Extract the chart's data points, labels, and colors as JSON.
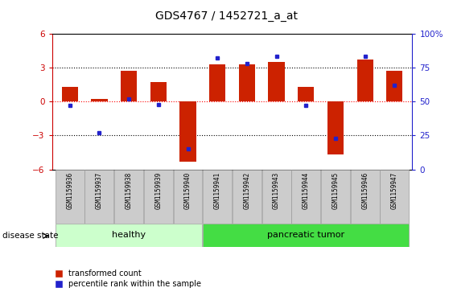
{
  "title": "GDS4767 / 1452721_a_at",
  "samples": [
    "GSM1159936",
    "GSM1159937",
    "GSM1159938",
    "GSM1159939",
    "GSM1159940",
    "GSM1159941",
    "GSM1159942",
    "GSM1159943",
    "GSM1159944",
    "GSM1159945",
    "GSM1159946",
    "GSM1159947"
  ],
  "transformed_count": [
    1.3,
    0.2,
    2.7,
    1.7,
    -5.3,
    3.3,
    3.3,
    3.5,
    1.3,
    -4.7,
    3.7,
    2.7
  ],
  "percentile_rank": [
    47,
    27,
    52,
    48,
    15,
    82,
    78,
    83,
    47,
    23,
    83,
    62
  ],
  "ylim": [
    -6,
    6
  ],
  "y2lim": [
    0,
    100
  ],
  "yticks": [
    -6,
    -3,
    0,
    3,
    6
  ],
  "y2ticks": [
    0,
    25,
    50,
    75,
    100
  ],
  "bar_color": "#cc2200",
  "dot_color": "#2222cc",
  "label_color_red": "#cc0000",
  "label_color_blue": "#2222cc",
  "healthy_color_light": "#ccffcc",
  "healthy_color": "#99ee99",
  "tumor_color": "#44dd44",
  "gray_box_color": "#cccccc"
}
